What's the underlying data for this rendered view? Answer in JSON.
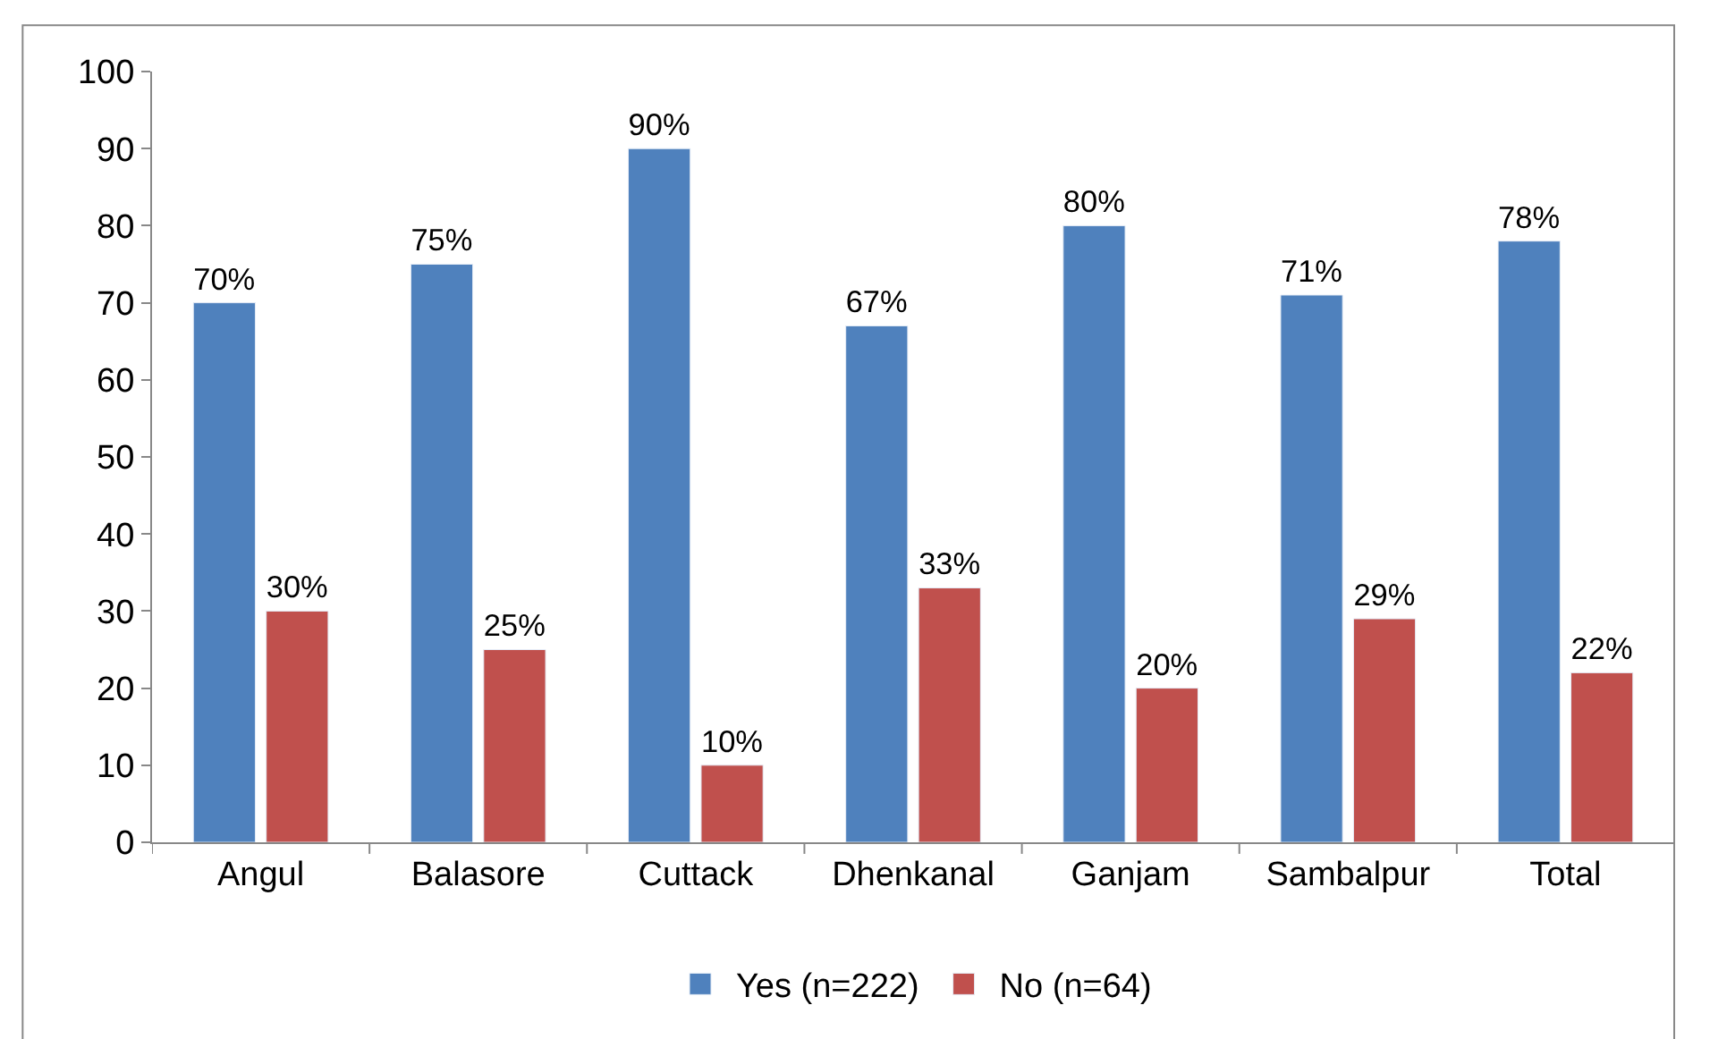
{
  "chart_data": {
    "type": "bar",
    "categories": [
      "Angul",
      "Balasore",
      "Cuttack",
      "Dhenkanal",
      "Ganjam",
      "Sambalpur",
      "Total"
    ],
    "series": [
      {
        "name": "Yes (n=222)",
        "color": "#4f81bd",
        "values": [
          70,
          75,
          90,
          67,
          80,
          71,
          78
        ],
        "value_labels": [
          "70%",
          "75%",
          "90%",
          "67%",
          "80%",
          "71%",
          "78%"
        ]
      },
      {
        "name": "No (n=64)",
        "color": "#c0504d",
        "values": [
          30,
          25,
          10,
          33,
          20,
          29,
          22
        ],
        "value_labels": [
          "30%",
          "25%",
          "10%",
          "33%",
          "20%",
          "29%",
          "22%"
        ]
      }
    ],
    "ylim": [
      0,
      100
    ],
    "yticks": [
      0,
      10,
      20,
      30,
      40,
      50,
      60,
      70,
      80,
      90,
      100
    ],
    "legend": "bottom"
  }
}
